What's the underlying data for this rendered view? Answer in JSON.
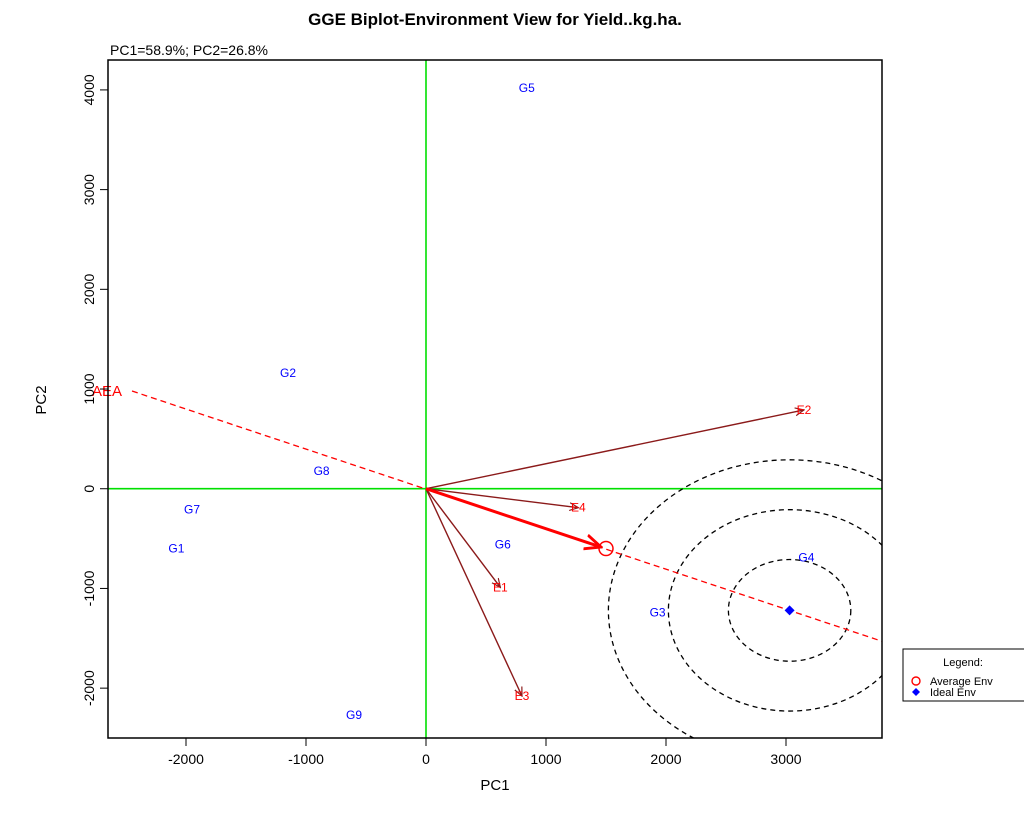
{
  "chart_data": {
    "type": "scatter",
    "title": "GGE Biplot-Environment View for Yield..kg.ha.",
    "subtitle": "PC1=58.9%; PC2=26.8%",
    "xlabel": "PC1",
    "ylabel": "PC2",
    "xlim": [
      -2650,
      3800
    ],
    "ylim": [
      -2500,
      4300
    ],
    "x_ticks": [
      -2000,
      -1000,
      0,
      1000,
      2000,
      3000
    ],
    "x_tick_labels": [
      "-2000",
      "-1000",
      "0",
      "1000",
      "2000",
      "3000"
    ],
    "y_ticks": [
      -2000,
      -1000,
      0,
      1000,
      2000,
      3000,
      4000
    ],
    "y_tick_labels": [
      "-2000",
      "-1000",
      "0",
      "1000",
      "2000",
      "3000",
      "4000"
    ],
    "genotypes": [
      {
        "label": "G1",
        "x": -2080,
        "y": -600
      },
      {
        "label": "G2",
        "x": -1150,
        "y": 1160
      },
      {
        "label": "G3",
        "x": 1930,
        "y": -1240
      },
      {
        "label": "G4",
        "x": 3170,
        "y": -690
      },
      {
        "label": "G5",
        "x": 840,
        "y": 4020
      },
      {
        "label": "G6",
        "x": 640,
        "y": -560
      },
      {
        "label": "G7",
        "x": -1950,
        "y": -210
      },
      {
        "label": "G8",
        "x": -870,
        "y": 180
      },
      {
        "label": "G9",
        "x": -600,
        "y": -2270
      }
    ],
    "environments": [
      {
        "label": "E1",
        "x": 620,
        "y": -990
      },
      {
        "label": "E2",
        "x": 3150,
        "y": 790
      },
      {
        "label": "E3",
        "x": 800,
        "y": -2080
      },
      {
        "label": "E4",
        "x": 1270,
        "y": -190
      }
    ],
    "average_env": {
      "x": 1500,
      "y": -600
    },
    "ideal_env": {
      "x": 3030,
      "y": -1220
    },
    "aea_label": "AEA",
    "aea_line": {
      "from": [
        -2450,
        980
      ],
      "to": [
        3800,
        -1530
      ]
    },
    "concentric_circle_radii": [
      510,
      1010,
      1510
    ],
    "colors": {
      "genotype": "#0000ff",
      "environment": "#ff0000",
      "vector": "#8b1a1a",
      "axis_lines": "#00e000",
      "circles": "#000000",
      "ideal_marker": "#0000ff",
      "average_marker": "#ff0000"
    },
    "legend": {
      "title": "Legend:",
      "position": "right",
      "items": [
        {
          "label": "Average Env",
          "marker": "open-circle",
          "color": "#ff0000"
        },
        {
          "label": "Ideal Env",
          "marker": "filled-diamond",
          "color": "#0000ff"
        }
      ]
    }
  }
}
